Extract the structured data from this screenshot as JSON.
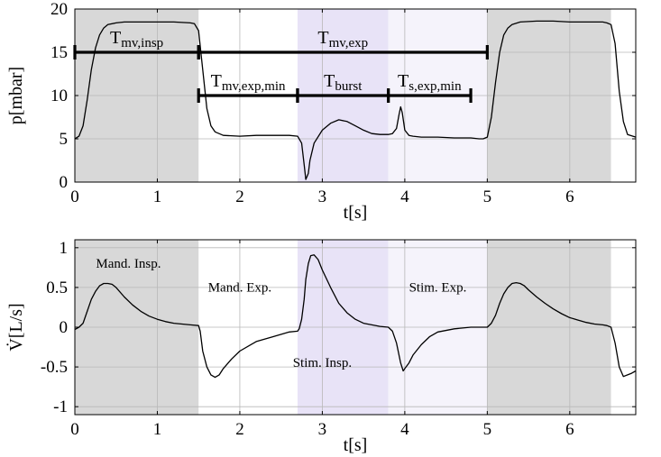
{
  "chart_data": [
    {
      "type": "line",
      "xlabel": "t[s]",
      "ylabel": "p[mbar]",
      "xlim": [
        0,
        6.8
      ],
      "ylim": [
        0,
        20
      ],
      "xticks": [
        0,
        1,
        2,
        3,
        4,
        5,
        6
      ],
      "yticks": [
        0,
        5,
        10,
        15,
        20
      ],
      "grid": true,
      "shaded_regions": [
        {
          "x0": 0,
          "x1": 1.5,
          "color": "#d8d8d8"
        },
        {
          "x0": 2.7,
          "x1": 3.8,
          "color": "#e8e3f7"
        },
        {
          "x0": 3.8,
          "x1": 5.0,
          "color": "#f5f3fb"
        },
        {
          "x0": 5.0,
          "x1": 6.5,
          "color": "#d8d8d8"
        }
      ],
      "intervals": [
        {
          "label_main": "T",
          "label_sub": "mv,insp",
          "x0": 0,
          "x1": 1.5,
          "y": 15
        },
        {
          "label_main": "T",
          "label_sub": "mv,exp",
          "x0": 1.5,
          "x1": 5.0,
          "y": 15
        },
        {
          "label_main": "T",
          "label_sub": "mv,exp,min",
          "x0": 1.5,
          "x1": 2.7,
          "y": 10
        },
        {
          "label_main": "T",
          "label_sub": "burst",
          "x0": 2.7,
          "x1": 3.8,
          "y": 10
        },
        {
          "label_main": "T",
          "label_sub": "s,exp,min",
          "x0": 3.8,
          "x1": 4.8,
          "y": 10
        }
      ],
      "series": [
        {
          "x": [
            0,
            0.05,
            0.1,
            0.15,
            0.2,
            0.25,
            0.3,
            0.35,
            0.4,
            0.5,
            0.6,
            0.8,
            1.0,
            1.2,
            1.4,
            1.45,
            1.5,
            1.55,
            1.6,
            1.65,
            1.7,
            1.8,
            2.0,
            2.2,
            2.4,
            2.6,
            2.7,
            2.75,
            2.78,
            2.8,
            2.83,
            2.85,
            2.9,
            3.0,
            3.1,
            3.2,
            3.3,
            3.4,
            3.5,
            3.6,
            3.7,
            3.75,
            3.8,
            3.85,
            3.9,
            3.93,
            3.95,
            3.97,
            4.0,
            4.05,
            4.1,
            4.2,
            4.4,
            4.6,
            4.8,
            4.9,
            4.95,
            5.0,
            5.05,
            5.1,
            5.15,
            5.2,
            5.25,
            5.3,
            5.4,
            5.6,
            5.8,
            6.0,
            6.2,
            6.4,
            6.45,
            6.5,
            6.55,
            6.6,
            6.65,
            6.7,
            6.8
          ],
          "y": [
            5.0,
            5.3,
            6.5,
            9.5,
            13.0,
            15.5,
            17.0,
            17.8,
            18.2,
            18.4,
            18.5,
            18.5,
            18.5,
            18.5,
            18.4,
            18.3,
            17.5,
            13.0,
            8.5,
            6.5,
            5.8,
            5.4,
            5.3,
            5.4,
            5.4,
            5.4,
            5.3,
            4.5,
            2.0,
            0.3,
            1.0,
            2.5,
            4.5,
            6.0,
            6.8,
            7.2,
            7.0,
            6.5,
            6.0,
            5.6,
            5.5,
            5.5,
            5.5,
            5.6,
            6.2,
            7.8,
            8.7,
            8.0,
            6.0,
            5.4,
            5.3,
            5.2,
            5.2,
            5.1,
            5.1,
            5.0,
            5.0,
            5.2,
            7.5,
            11.5,
            15.0,
            17.0,
            17.8,
            18.2,
            18.5,
            18.6,
            18.6,
            18.5,
            18.5,
            18.5,
            18.4,
            18.2,
            16.0,
            10.5,
            7.0,
            5.5,
            5.2
          ]
        }
      ]
    },
    {
      "type": "line",
      "xlabel": "t[s]",
      "ylabel": "V̇[L/s]",
      "xlim": [
        0,
        6.8
      ],
      "ylim": [
        -1.1,
        1.1
      ],
      "xticks": [
        0,
        1,
        2,
        3,
        4,
        5,
        6
      ],
      "yticks": [
        -1,
        -0.5,
        0,
        0.5,
        1
      ],
      "ytick_labels": [
        "-1",
        "-0.5",
        "0",
        "0.5",
        "1"
      ],
      "grid": true,
      "shaded_regions": [
        {
          "x0": 0,
          "x1": 1.5,
          "color": "#d8d8d8"
        },
        {
          "x0": 2.7,
          "x1": 3.8,
          "color": "#e8e3f7"
        },
        {
          "x0": 3.8,
          "x1": 5.0,
          "color": "#f5f3fb"
        },
        {
          "x0": 5.0,
          "x1": 6.5,
          "color": "#d8d8d8"
        }
      ],
      "annotations": [
        {
          "text": "Mand. Insp.",
          "x": 0.65,
          "y": 0.75
        },
        {
          "text": "Mand. Exp.",
          "x": 2.0,
          "y": 0.45
        },
        {
          "text": "Stim. Exp.",
          "x": 4.4,
          "y": 0.45
        },
        {
          "text": "Stim. Insp.",
          "x": 3.0,
          "y": -0.5
        }
      ],
      "series": [
        {
          "x": [
            0,
            0.05,
            0.1,
            0.15,
            0.2,
            0.25,
            0.3,
            0.35,
            0.4,
            0.45,
            0.5,
            0.6,
            0.7,
            0.8,
            0.9,
            1.0,
            1.1,
            1.2,
            1.3,
            1.4,
            1.5,
            1.52,
            1.55,
            1.6,
            1.65,
            1.7,
            1.75,
            1.8,
            1.9,
            2.0,
            2.2,
            2.4,
            2.6,
            2.7,
            2.72,
            2.75,
            2.78,
            2.8,
            2.83,
            2.86,
            2.9,
            2.95,
            3.0,
            3.1,
            3.2,
            3.3,
            3.4,
            3.5,
            3.6,
            3.7,
            3.8,
            3.85,
            3.9,
            3.95,
            3.98,
            4.0,
            4.05,
            4.1,
            4.2,
            4.3,
            4.4,
            4.6,
            4.8,
            4.9,
            5.0,
            5.05,
            5.1,
            5.15,
            5.2,
            5.25,
            5.3,
            5.35,
            5.4,
            5.45,
            5.5,
            5.6,
            5.7,
            5.8,
            5.9,
            6.0,
            6.1,
            6.2,
            6.3,
            6.4,
            6.45,
            6.5,
            6.55,
            6.6,
            6.65,
            6.7,
            6.75,
            6.8
          ],
          "y": [
            -0.03,
            0.0,
            0.05,
            0.2,
            0.35,
            0.45,
            0.52,
            0.55,
            0.55,
            0.54,
            0.5,
            0.38,
            0.28,
            0.2,
            0.14,
            0.1,
            0.07,
            0.05,
            0.04,
            0.03,
            0.02,
            -0.05,
            -0.3,
            -0.5,
            -0.6,
            -0.63,
            -0.6,
            -0.52,
            -0.4,
            -0.3,
            -0.18,
            -0.12,
            -0.06,
            -0.05,
            -0.02,
            0.1,
            0.35,
            0.6,
            0.8,
            0.9,
            0.91,
            0.85,
            0.72,
            0.5,
            0.3,
            0.18,
            0.1,
            0.05,
            0.03,
            0.01,
            0.0,
            -0.05,
            -0.2,
            -0.45,
            -0.55,
            -0.52,
            -0.45,
            -0.35,
            -0.22,
            -0.12,
            -0.06,
            -0.02,
            0.0,
            0.0,
            0.0,
            0.05,
            0.15,
            0.3,
            0.42,
            0.5,
            0.55,
            0.56,
            0.55,
            0.52,
            0.47,
            0.38,
            0.3,
            0.23,
            0.17,
            0.12,
            0.09,
            0.06,
            0.04,
            0.03,
            0.02,
            0.0,
            -0.2,
            -0.5,
            -0.62,
            -0.6,
            -0.58,
            -0.55
          ]
        }
      ]
    }
  ]
}
